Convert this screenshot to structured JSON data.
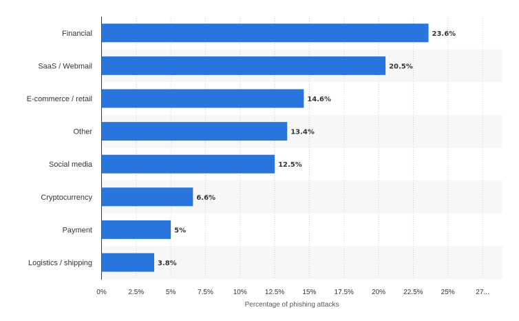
{
  "chart_data": {
    "type": "bar",
    "orientation": "horizontal",
    "categories": [
      "Financial",
      "SaaS / Webmail",
      "E-commerce / retail",
      "Other",
      "Social media",
      "Cryptocurrency",
      "Payment",
      "Logistics / shipping"
    ],
    "values": [
      23.6,
      20.5,
      14.6,
      13.4,
      12.5,
      6.6,
      5,
      3.8
    ],
    "value_labels": [
      "23.6%",
      "20.5%",
      "14.6%",
      "13.4%",
      "12.5%",
      "6.6%",
      "5%",
      "3.8%"
    ],
    "xlabel": "Percentage of phishing attacks",
    "xlim": [
      0,
      27.5
    ],
    "xticks": [
      0,
      2.5,
      5,
      7.5,
      10,
      12.5,
      15,
      17.5,
      20,
      22.5,
      25,
      27.5
    ],
    "xtick_labels": [
      "0%",
      "2.5%",
      "5%",
      "7.5%",
      "10%",
      "12.5%",
      "15%",
      "17.5%",
      "20%",
      "22.5%",
      "25%",
      "27..."
    ],
    "grid": "vertical dotted",
    "colors": {
      "bar": "#2876dd",
      "band": "#f7f7f7",
      "grid": "#cccccc",
      "axis": "#333333"
    }
  }
}
